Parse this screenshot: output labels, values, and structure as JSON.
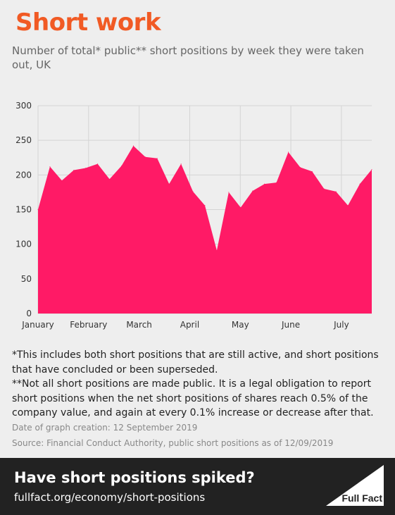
{
  "header": {
    "title": "Short work",
    "subtitle": "Number of total* public** short positions by week they were taken out, UK"
  },
  "notes": {
    "note1": "*This includes both short positions that are still active, and short positions that have concluded or been superseded.",
    "note2": "**Not all short positions are made public. It is a legal obligation to report short positions when the net short positions of shares reach 0.5% of the company value, and again at every 0.1% increase or decrease after that."
  },
  "meta": {
    "date": "Date of graph creation: 12 September 2019",
    "source": "Source: Financial Conduct Authority, public short positions as of 12/09/2019"
  },
  "footer": {
    "title": "Have short positions spiked?",
    "link": "fullfact.org/economy/short-positions",
    "logo_text": "Full Fact"
  },
  "colors": {
    "title": "#f15a24",
    "area": "#ff1a66",
    "footer_bg": "#222222"
  },
  "chart_data": {
    "type": "area",
    "ylim": [
      0,
      300
    ],
    "yticks": [
      0,
      50,
      100,
      150,
      200,
      250,
      300
    ],
    "month_labels": [
      "January",
      "February",
      "March",
      "April",
      "May",
      "June",
      "July"
    ],
    "grid": "horizontal and vertical",
    "series": [
      {
        "values": [
          150,
          212,
          192,
          207,
          210,
          216,
          194,
          213,
          242,
          226,
          224,
          187,
          216,
          176,
          156,
          91,
          175,
          153,
          177,
          187,
          189,
          233,
          211,
          205,
          180,
          176,
          156,
          187,
          208
        ]
      }
    ]
  }
}
